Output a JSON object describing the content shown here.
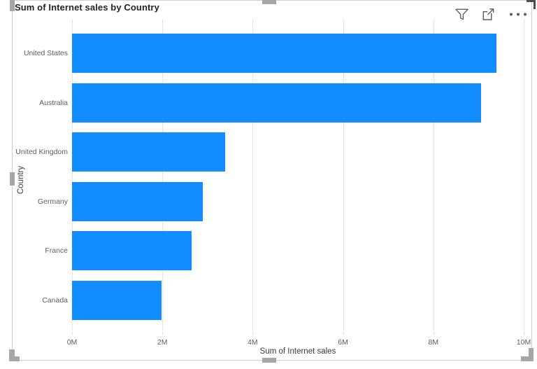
{
  "visual": {
    "title": "Sum of Internet sales by Country",
    "toolbar": {
      "filter_icon": "filter-funnel",
      "focus_icon": "focus-mode",
      "more_icon": "more-options"
    }
  },
  "chart_data": {
    "type": "bar",
    "orientation": "horizontal",
    "title": "Sum of Internet sales by Country",
    "categories": [
      "United States",
      "Australia",
      "United Kingdom",
      "Germany",
      "France",
      "Canada"
    ],
    "series": [
      {
        "name": "Sum of Internet sales",
        "values_millions": [
          9.39,
          9.06,
          3.39,
          2.89,
          2.64,
          1.98
        ]
      }
    ],
    "xlabel": "Sum of Internet sales",
    "ylabel": "Country",
    "xlim_millions": [
      0,
      10
    ],
    "x_tick_labels": [
      "0M",
      "2M",
      "4M",
      "6M",
      "8M",
      "10M"
    ],
    "bar_color": "#118DFF",
    "grid": "vertical-dotted",
    "legend_position": "none"
  }
}
